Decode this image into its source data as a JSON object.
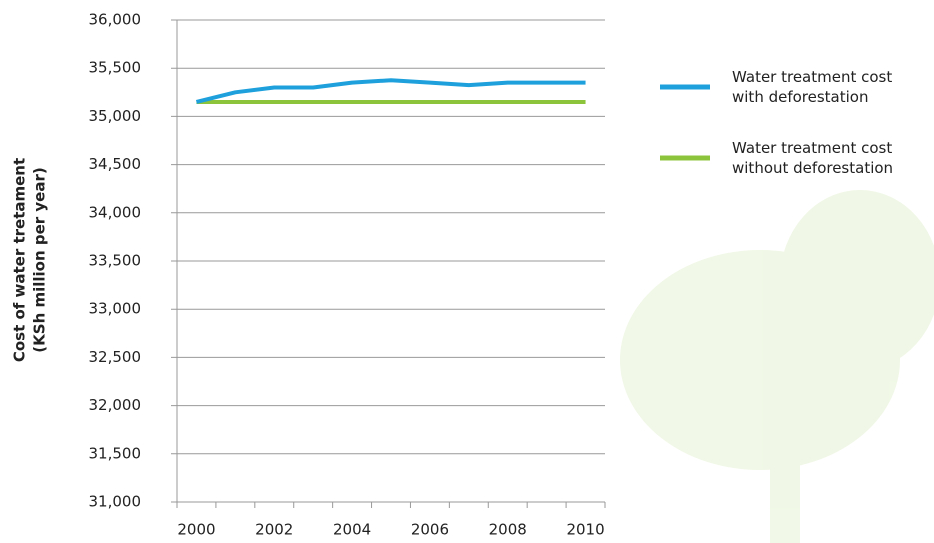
{
  "chart_data": {
    "type": "line",
    "ylabel": [
      "Cost of water tretament",
      "(KSh million per year)"
    ],
    "categories": [
      "2000",
      null,
      "2002",
      null,
      "2004",
      null,
      "2006",
      null,
      "2008",
      null,
      "2010"
    ],
    "series": [
      {
        "name": "Water treatment cost with deforestation",
        "color": "#1ea0dc",
        "values": [
          35150,
          35250,
          35300,
          35300,
          35350,
          35375,
          35350,
          35325,
          35350,
          35350,
          35350
        ]
      },
      {
        "name": "Water treatment cost without deforestation",
        "color": "#8cc43c",
        "values": [
          35150,
          35150,
          35150,
          35150,
          35150,
          35150,
          35150,
          35150,
          35150,
          35150,
          35150
        ]
      }
    ],
    "ylim": [
      31000,
      36000
    ],
    "yticks": [
      {
        "value": 31000,
        "label": "31,000"
      },
      {
        "value": 31500,
        "label": "31,500"
      },
      {
        "value": 32000,
        "label": "32,000"
      },
      {
        "value": 32500,
        "label": "32,500"
      },
      {
        "value": 33000,
        "label": "33,000"
      },
      {
        "value": 33500,
        "label": "33,500"
      },
      {
        "value": 34000,
        "label": "34,000"
      },
      {
        "value": 34500,
        "label": "34,500"
      },
      {
        "value": 35000,
        "label": "35,000"
      },
      {
        "value": 35500,
        "label": "35,500"
      },
      {
        "value": 36000,
        "label": "36,000"
      }
    ],
    "grid": true
  }
}
